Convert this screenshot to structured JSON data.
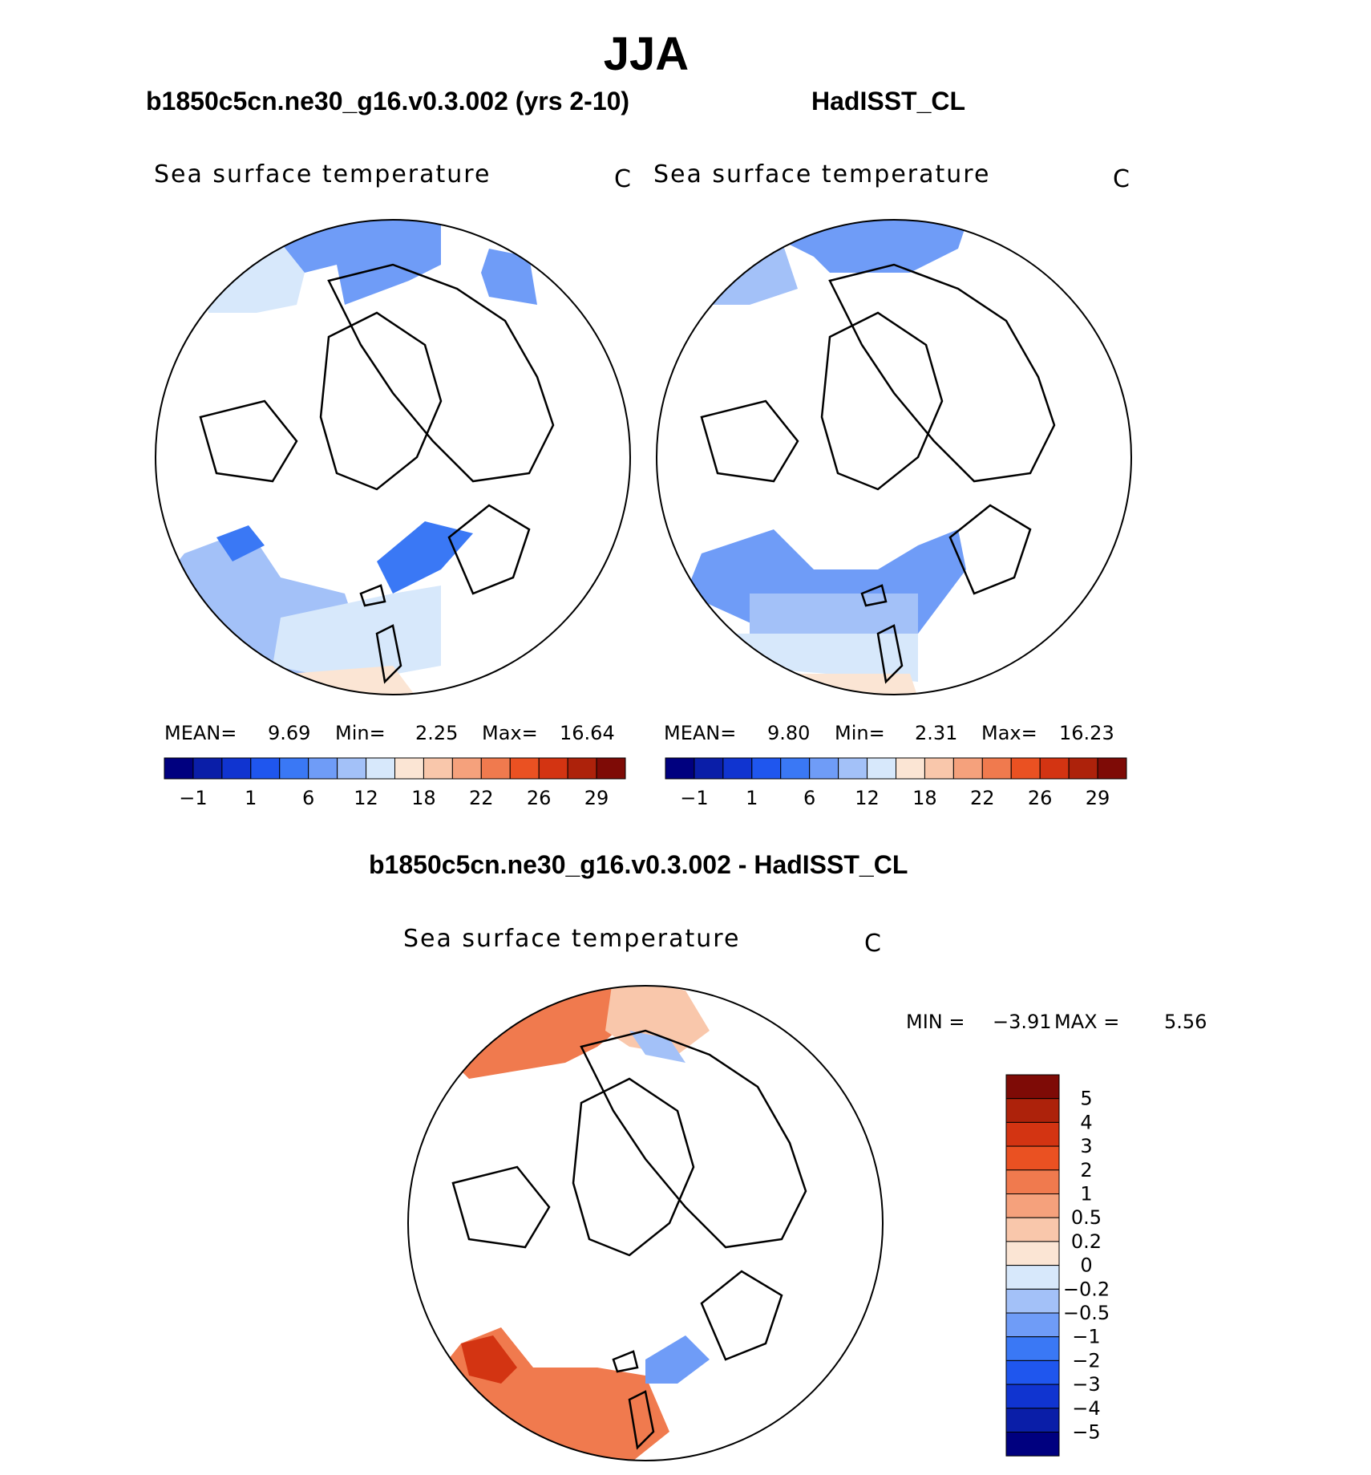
{
  "title": "JJA",
  "chart_data": [
    {
      "type": "heatmap",
      "panel_title": "b1850c5cn.ne30_g16.v0.3.002 (yrs 2-10)",
      "variable": "Sea surface temperature",
      "units": "C",
      "projection": "north polar stereographic",
      "stats": {
        "mean_label": "MEAN=",
        "mean": "9.69",
        "min_label": "Min=",
        "min": "2.25",
        "max_label": "Max=",
        "max": "16.64"
      },
      "colorbar_labels": [
        "−1",
        "1",
        "6",
        "12",
        "18",
        "22",
        "26",
        "29"
      ]
    },
    {
      "type": "heatmap",
      "panel_title": "HadISST_CL",
      "variable": "Sea surface temperature",
      "units": "C",
      "projection": "north polar stereographic",
      "stats": {
        "mean_label": "MEAN=",
        "mean": "9.80",
        "min_label": "Min=",
        "min": "2.31",
        "max_label": "Max=",
        "max": "16.23"
      },
      "colorbar_labels": [
        "−1",
        "1",
        "6",
        "12",
        "18",
        "22",
        "26",
        "29"
      ]
    },
    {
      "type": "heatmap",
      "panel_title": "b1850c5cn.ne30_g16.v0.3.002 - HadISST_CL",
      "variable": "Sea surface temperature",
      "units": "C",
      "projection": "north polar stereographic",
      "stats": {
        "min_label": "MIN =",
        "min": "−3.91",
        "max_label": "MAX =",
        "max": "5.56"
      },
      "colorbar_labels": [
        "5",
        "4",
        "3",
        "2",
        "1",
        "0.5",
        "0.2",
        "0",
        "−0.2",
        "−0.5",
        "−1",
        "−2",
        "−3",
        "−4",
        "−5"
      ]
    }
  ],
  "colors": {
    "abs_scale": [
      "#00007f",
      "#0a1ea8",
      "#1034d0",
      "#1f56ee",
      "#3a78f5",
      "#6f9cf7",
      "#a3c1f8",
      "#d7e8fb",
      "#fbe5d4",
      "#f9c7ab",
      "#f5a17c",
      "#f07a4e",
      "#ea5122",
      "#d33412",
      "#ad220b",
      "#7e0b06"
    ],
    "diff_scale": [
      "#7e0b06",
      "#ad220b",
      "#d33412",
      "#ea5122",
      "#f07a4e",
      "#f5a17c",
      "#f9c7ab",
      "#fbe5d4",
      "#d7e8fb",
      "#a3c1f8",
      "#6f9cf7",
      "#3a78f5",
      "#1f56ee",
      "#1034d0",
      "#0a1ea8",
      "#00007f"
    ]
  }
}
